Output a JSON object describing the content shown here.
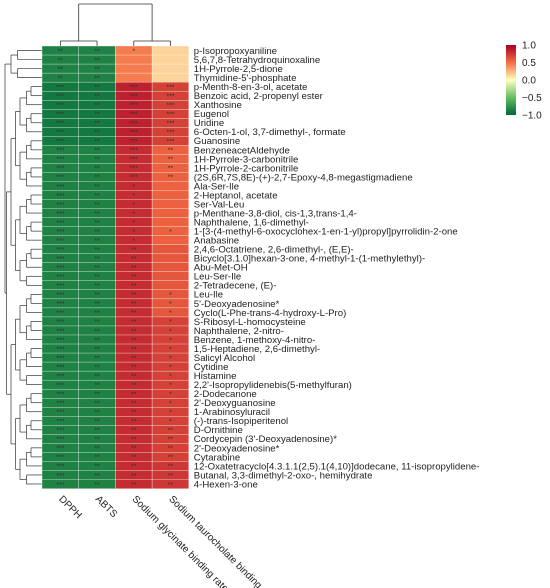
{
  "chart_data": {
    "type": "heatmap",
    "title": "",
    "columns": [
      "DPPH",
      "ABTS",
      "Sodium glycinate binding rate",
      "Sodium taurocholate binding rate"
    ],
    "rows": [
      "p-Isopropoxyaniline",
      "5,6,7,8-Tetrahydroquinoxaline",
      "1H-Pyrrole-2,5-dione",
      "Thymidine-5'-phosphate",
      "p-Menth-8-en-3-ol, acetate",
      "Benzoic acid, 2-propenyl ester",
      "Xanthosine",
      "Eugenol",
      "Uridine",
      "6-Octen-1-ol, 3,7-dimethyl-, formate",
      "Guanosine",
      "BenzeneacetAldehyde",
      "1H-Pyrrole-3-carbonitrile",
      "1H-Pyrrole-2-carbonitrile",
      "(2S,6R,7S,8E)-(+)-2,7-Epoxy-4,8-megastigmadiene",
      "Ala-Ser-Ile",
      "2-Heptanol, acetate",
      "Ser-Val-Leu",
      "p-Menthane-3,8-diol, cis-1,3,trans-1,4-",
      "Naphthalene, 1,6-dimethyl-",
      "1-[3-(4-methyl-6-oxocyclohex-1-en-1-yl)propyl]pyrrolidin-2-one",
      "Anabasine",
      "2,4,6-Octatriene, 2,6-dimethyl-, (E,E)-",
      "Bicyclo[3.1.0]hexan-3-one, 4-methyl-1-(1-methylethyl)-",
      "Abu-Met-OH",
      "Leu-Ser-Ile",
      "2-Tetradecene, (E)-",
      "Leu-Ile",
      "5'-Deoxyadenosine*",
      "Cyclo(L-Phe-trans-4-hydroxy-L-Pro)",
      "S-Ribosyl-L-homocysteine",
      "Naphthalene, 2-nitro-",
      "Benzene, 1-methoxy-4-nitro-",
      "1,5-Heptadiene, 2,6-dimethyl-",
      "Salicyl Alcohol",
      "Cytidine",
      "Histamine",
      "2,2'-Isopropylidenebis(5-methylfuran)",
      "2-Dodecanone",
      "2'-Deoxyguanosine",
      "1-Arabinosyluracil",
      "(-)-trans-Isopiperitenol",
      "D-Ornithine",
      "Cordycepin (3'-Deoxyadenosine)*",
      "2'-Deoxyadenosine*",
      "Cytarabine",
      "12-Oxatetracyclo[4.3.1.1(2,5).1(4,10)]dodecane, 11-isopropylidene-",
      "Butanal, 3,3-dimethyl-2-oxo-, hemihydrate",
      "4-Hexen-3-one"
    ],
    "values": [
      [
        -0.85,
        -0.85,
        0.45,
        0.15
      ],
      [
        -0.85,
        -0.85,
        0.45,
        0.15
      ],
      [
        -0.85,
        -0.85,
        0.45,
        0.15
      ],
      [
        -0.85,
        -0.85,
        0.45,
        0.15
      ],
      [
        -0.9,
        -0.9,
        0.85,
        0.7
      ],
      [
        -0.9,
        -0.9,
        0.85,
        0.7
      ],
      [
        -0.9,
        -0.9,
        0.85,
        0.7
      ],
      [
        -0.9,
        -0.9,
        0.85,
        0.7
      ],
      [
        -0.9,
        -0.9,
        0.85,
        0.7
      ],
      [
        -0.9,
        -0.9,
        0.85,
        0.7
      ],
      [
        -0.9,
        -0.9,
        0.85,
        0.7
      ],
      [
        -0.85,
        -0.85,
        0.8,
        0.55
      ],
      [
        -0.85,
        -0.85,
        0.8,
        0.55
      ],
      [
        -0.85,
        -0.85,
        0.8,
        0.55
      ],
      [
        -0.85,
        -0.85,
        0.8,
        0.55
      ],
      [
        -0.85,
        -0.85,
        0.8,
        0.55
      ],
      [
        -0.85,
        -0.85,
        0.8,
        0.55
      ],
      [
        -0.85,
        -0.85,
        0.8,
        0.55
      ],
      [
        -0.85,
        -0.85,
        0.8,
        0.55
      ],
      [
        -0.85,
        -0.85,
        0.8,
        0.55
      ],
      [
        -0.85,
        -0.85,
        0.8,
        0.55
      ],
      [
        -0.85,
        -0.85,
        0.8,
        0.55
      ],
      [
        -0.85,
        -0.85,
        0.8,
        0.6
      ],
      [
        -0.85,
        -0.85,
        0.8,
        0.6
      ],
      [
        -0.85,
        -0.85,
        0.8,
        0.6
      ],
      [
        -0.85,
        -0.85,
        0.8,
        0.6
      ],
      [
        -0.85,
        -0.85,
        0.8,
        0.6
      ],
      [
        -0.85,
        -0.85,
        0.8,
        0.6
      ],
      [
        -0.85,
        -0.85,
        0.8,
        0.6
      ],
      [
        -0.85,
        -0.85,
        0.8,
        0.6
      ],
      [
        -0.85,
        -0.85,
        0.8,
        0.7
      ],
      [
        -0.85,
        -0.85,
        0.8,
        0.7
      ],
      [
        -0.85,
        -0.85,
        0.8,
        0.7
      ],
      [
        -0.85,
        -0.85,
        0.8,
        0.7
      ],
      [
        -0.85,
        -0.85,
        0.8,
        0.7
      ],
      [
        -0.85,
        -0.85,
        0.8,
        0.7
      ],
      [
        -0.85,
        -0.85,
        0.8,
        0.7
      ],
      [
        -0.85,
        -0.85,
        0.8,
        0.7
      ],
      [
        -0.85,
        -0.85,
        0.8,
        0.7
      ],
      [
        -0.85,
        -0.85,
        0.8,
        0.7
      ],
      [
        -0.85,
        -0.85,
        0.8,
        0.7
      ],
      [
        -0.85,
        -0.85,
        0.8,
        0.7
      ],
      [
        -0.85,
        -0.85,
        0.8,
        0.7
      ],
      [
        -0.85,
        -0.85,
        0.8,
        0.7
      ],
      [
        -0.85,
        -0.85,
        0.8,
        0.7
      ],
      [
        -0.85,
        -0.85,
        0.8,
        0.7
      ],
      [
        -0.85,
        -0.85,
        0.8,
        0.75
      ],
      [
        -0.85,
        -0.85,
        0.8,
        0.75
      ],
      [
        -0.85,
        -0.85,
        0.8,
        0.75
      ]
    ],
    "significance": [
      [
        "**",
        "**",
        "*",
        ""
      ],
      [
        "**",
        "**",
        "",
        ""
      ],
      [
        "**",
        "**",
        "",
        ""
      ],
      [
        "**",
        "**",
        "",
        ""
      ],
      [
        "***",
        "**",
        "***",
        "***"
      ],
      [
        "***",
        "**",
        "***",
        "***"
      ],
      [
        "***",
        "**",
        "***",
        "***"
      ],
      [
        "***",
        "**",
        "***",
        "***"
      ],
      [
        "***",
        "**",
        "***",
        "***"
      ],
      [
        "***",
        "**",
        "***",
        "***"
      ],
      [
        "***",
        "**",
        "***",
        "***"
      ],
      [
        "***",
        "**",
        "***",
        "**"
      ],
      [
        "***",
        "**",
        "***",
        "**"
      ],
      [
        "***",
        "**",
        "***",
        "**"
      ],
      [
        "***",
        "**",
        "***",
        "**"
      ],
      [
        "***",
        "**",
        "*",
        ""
      ],
      [
        "***",
        "**",
        "*",
        ""
      ],
      [
        "***",
        "**",
        "*",
        ""
      ],
      [
        "***",
        "**",
        "*",
        ""
      ],
      [
        "***",
        "**",
        "*",
        ""
      ],
      [
        "***",
        "**",
        "*",
        "*"
      ],
      [
        "***",
        "**",
        "*",
        ""
      ],
      [
        "***",
        "**",
        "**",
        ""
      ],
      [
        "***",
        "**",
        "**",
        ""
      ],
      [
        "***",
        "**",
        "**",
        ""
      ],
      [
        "***",
        "**",
        "**",
        ""
      ],
      [
        "***",
        "**",
        "**",
        ""
      ],
      [
        "***",
        "**",
        "**",
        "*"
      ],
      [
        "***",
        "**",
        "**",
        "*"
      ],
      [
        "***",
        "**",
        "**",
        "*"
      ],
      [
        "***",
        "**",
        "**",
        "*"
      ],
      [
        "***",
        "**",
        "**",
        "*"
      ],
      [
        "***",
        "**",
        "**",
        "*"
      ],
      [
        "***",
        "**",
        "**",
        "*"
      ],
      [
        "***",
        "**",
        "**",
        "*"
      ],
      [
        "***",
        "**",
        "**",
        "*"
      ],
      [
        "***",
        "**",
        "**",
        "*"
      ],
      [
        "***",
        "**",
        "**",
        "*"
      ],
      [
        "***",
        "**",
        "**",
        "*"
      ],
      [
        "***",
        "**",
        "**",
        "*"
      ],
      [
        "***",
        "**",
        "**",
        "*"
      ],
      [
        "***",
        "**",
        "**",
        "*"
      ],
      [
        "***",
        "**",
        "**",
        "**"
      ],
      [
        "***",
        "**",
        "**",
        "**"
      ],
      [
        "***",
        "**",
        "**",
        "**"
      ],
      [
        "***",
        "**",
        "**",
        "**"
      ],
      [
        "***",
        "**",
        "**",
        "**"
      ],
      [
        "***",
        "**",
        "**",
        "**"
      ],
      [
        "***",
        "**",
        "**",
        "**"
      ]
    ],
    "colorbar": {
      "range": [
        -1.0,
        1.0
      ],
      "ticks": [
        "1.0",
        "0.5",
        "0.0",
        "−0.5",
        "−1.0"
      ],
      "tick_values": [
        1.0,
        0.5,
        0.0,
        -0.5,
        -1.0
      ],
      "colors": {
        "negative": "#006837",
        "zero": "#ffffbf",
        "positive": "#a50026"
      }
    },
    "grid": true,
    "dendrograms": [
      "top (columns)",
      "left (rows)"
    ],
    "legend": "colorbar top-right"
  }
}
